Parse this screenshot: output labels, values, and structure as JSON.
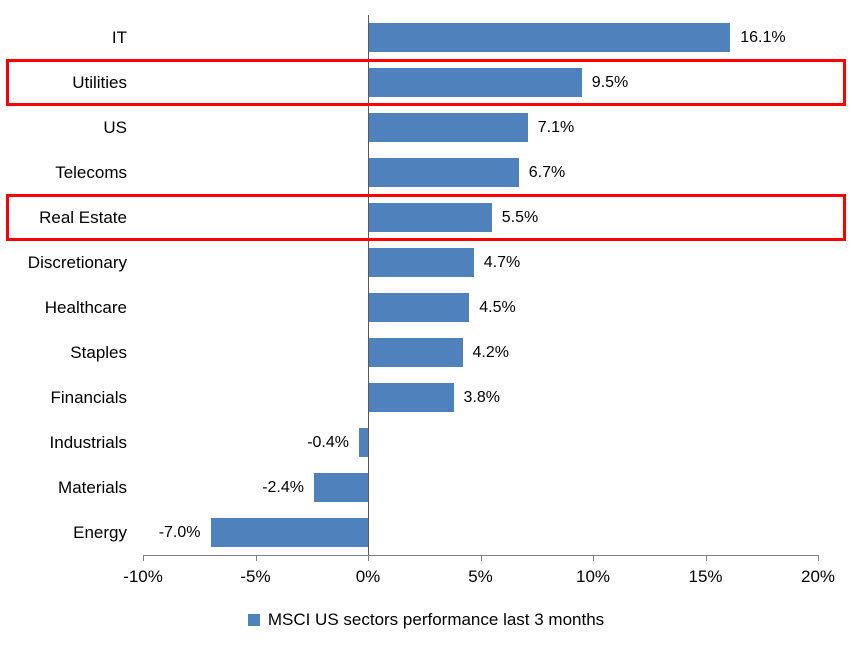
{
  "chart_data": {
    "type": "bar",
    "orientation": "horizontal",
    "categories": [
      "IT",
      "Utilities",
      "US",
      "Telecoms",
      "Real Estate",
      "Discretionary",
      "Healthcare",
      "Staples",
      "Financials",
      "Industrials",
      "Materials",
      "Energy"
    ],
    "values": [
      16.1,
      9.5,
      7.1,
      6.7,
      5.5,
      4.7,
      4.5,
      4.2,
      3.8,
      -0.4,
      -2.4,
      -7.0
    ],
    "value_labels": [
      "16.1%",
      "9.5%",
      "7.1%",
      "6.7%",
      "5.5%",
      "4.7%",
      "4.5%",
      "4.2%",
      "3.8%",
      "-0.4%",
      "-2.4%",
      "-7.0%"
    ],
    "xlim": [
      -10,
      20
    ],
    "x_ticks": [
      "-10%",
      "-5%",
      "0%",
      "5%",
      "10%",
      "15%",
      "20%"
    ],
    "x_tick_values": [
      -10,
      -5,
      0,
      5,
      10,
      15,
      20
    ],
    "legend": "MSCI US sectors performance last 3 months",
    "highlighted_categories": [
      "Utilities",
      "Real Estate"
    ],
    "highlighted_indices": [
      1,
      4
    ],
    "grid": "off",
    "legend_position": "bottom-center",
    "colors": {
      "bar": "#4f81bd",
      "highlight_border": "#ff0000",
      "axis": "#808080",
      "text": "#000000"
    }
  }
}
